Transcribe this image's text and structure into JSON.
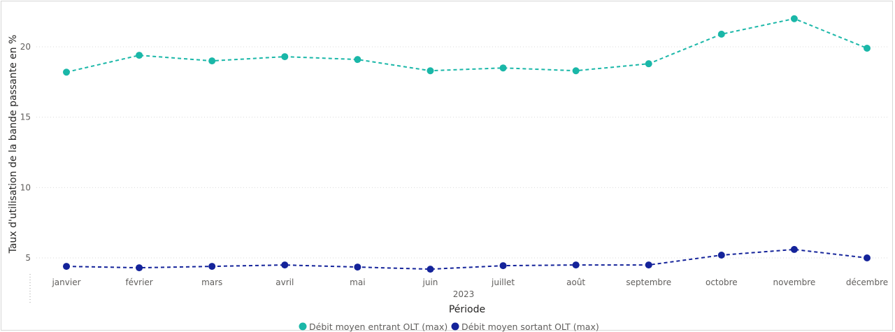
{
  "chart_data": {
    "type": "line",
    "ylabel": "Taux d'utilisation de la bande passante en %",
    "xlabel": "Période",
    "x_group_label": "2023",
    "categories": [
      "janvier",
      "février",
      "mars",
      "avril",
      "mai",
      "juin",
      "juillet",
      "août",
      "septembre",
      "octobre",
      "novembre",
      "décembre"
    ],
    "yticks": [
      5,
      10,
      15,
      20
    ],
    "ylim": [
      3.5,
      22
    ],
    "grid": true,
    "legend_position": "bottom",
    "series": [
      {
        "name": "Débit moyen entrant OLT (max)",
        "color": "#1ab7a8",
        "values": [
          18.2,
          19.4,
          19.0,
          19.3,
          19.1,
          18.3,
          18.5,
          18.3,
          18.8,
          20.9,
          22.0,
          19.9
        ]
      },
      {
        "name": "Débit moyen sortant OLT (max)",
        "color": "#14239a",
        "values": [
          4.4,
          4.3,
          4.4,
          4.5,
          4.35,
          4.2,
          4.45,
          4.5,
          4.5,
          5.2,
          5.6,
          5.0
        ]
      }
    ]
  }
}
